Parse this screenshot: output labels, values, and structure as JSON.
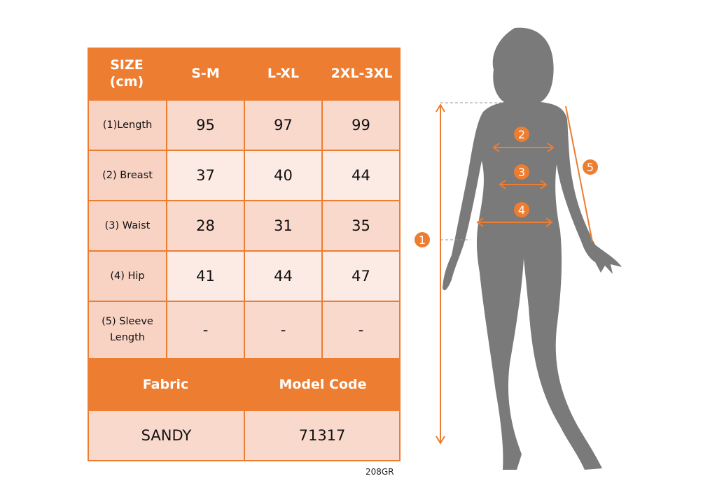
{
  "table": {
    "header": [
      "SIZE\n(cm)",
      "S-M",
      "L-XL",
      "2XL-3XL"
    ],
    "rows": [
      {
        "label": "(1)Length",
        "values": [
          "95",
          "97",
          "99"
        ]
      },
      {
        "label": "(2) Breast",
        "values": [
          "37",
          "40",
          "44"
        ]
      },
      {
        "label": "(3) Waist",
        "values": [
          "28",
          "31",
          "35"
        ]
      },
      {
        "label": "(4) Hip",
        "values": [
          "41",
          "44",
          "47"
        ]
      },
      {
        "label": "(5) Sleeve Length",
        "values": [
          "-",
          "-",
          "-"
        ]
      }
    ],
    "footer_headers": [
      "Fabric",
      "Model Code"
    ],
    "footer_values": [
      "SANDY",
      "71317"
    ]
  },
  "product_code": "208GR",
  "figure": {
    "markers": [
      "1",
      "2",
      "3",
      "4",
      "5"
    ]
  },
  "colors": {
    "accent": "#ED7D31",
    "label_cell": "#F8D3C4",
    "value_cell_dark": "#F9D9CC",
    "value_cell_light": "#FCEBE4",
    "silhouette": "#7A7A7A"
  }
}
